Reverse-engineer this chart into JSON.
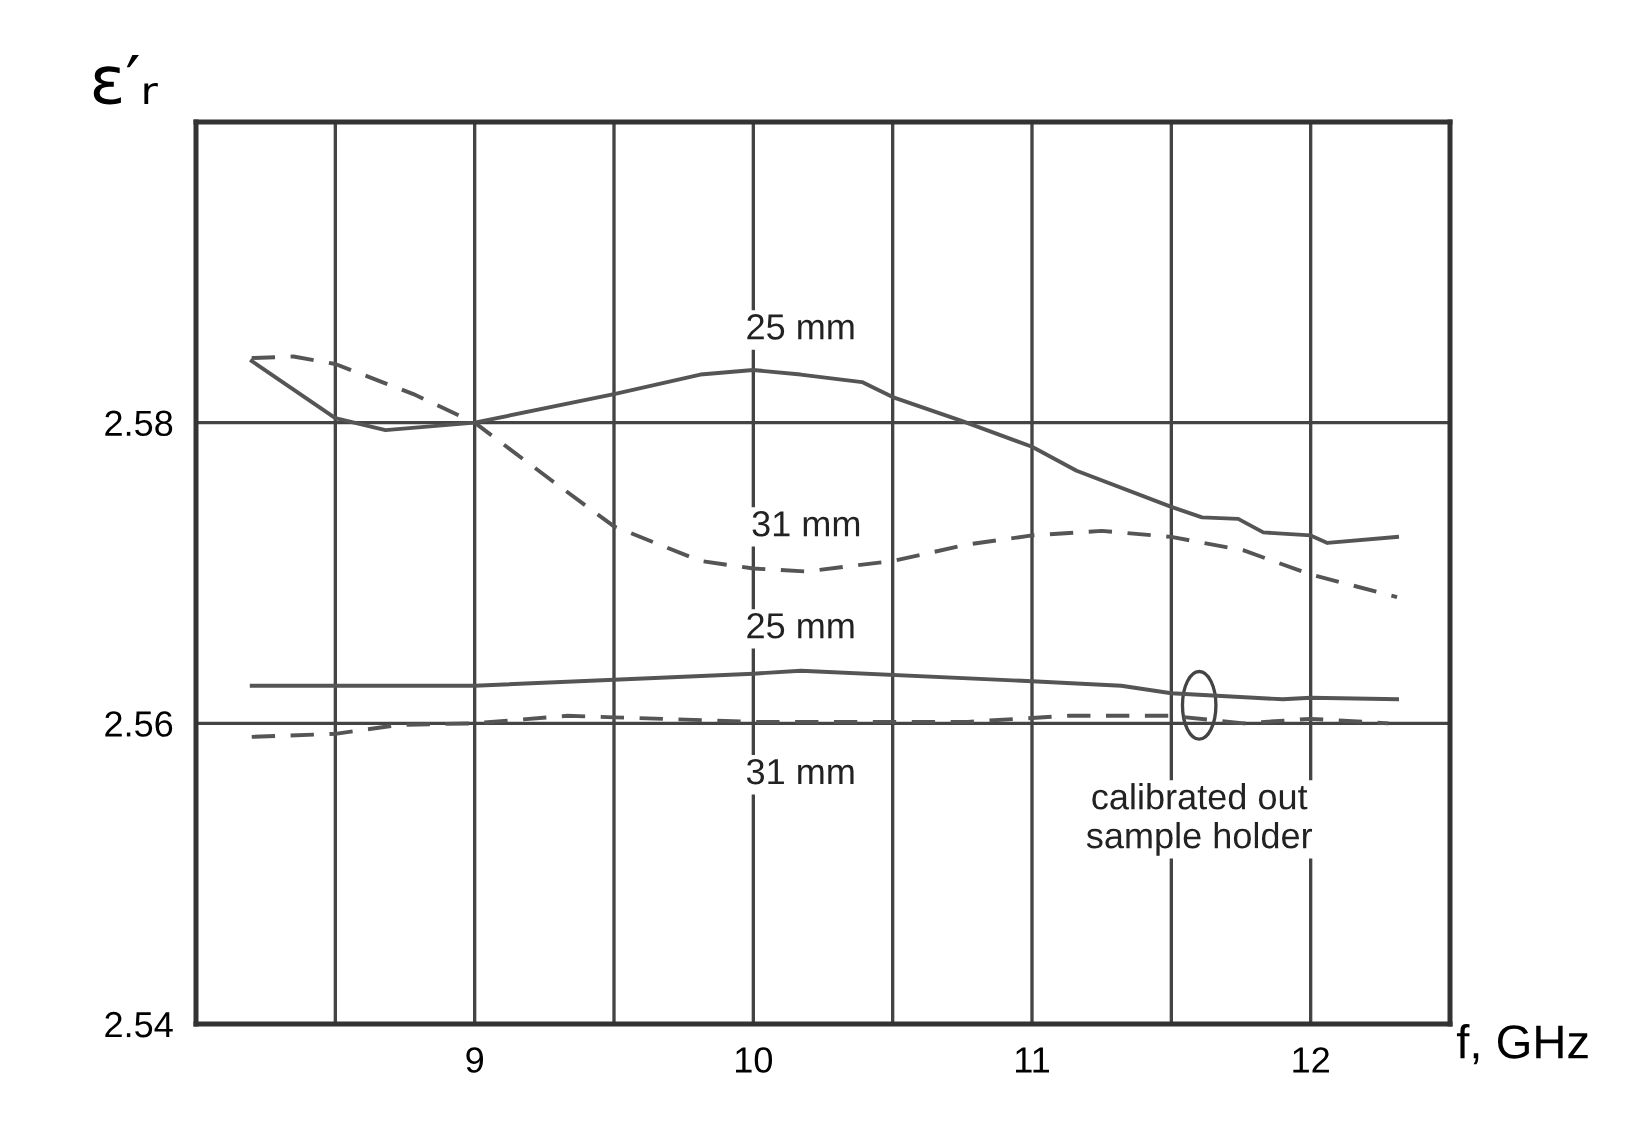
{
  "chart_data": {
    "type": "line",
    "ylabel": "ε′ᵣ",
    "xlabel": "f, GHz",
    "xlim": [
      8,
      12.5
    ],
    "ylim": [
      2.54,
      2.6
    ],
    "xticks": [
      {
        "value": 8.5,
        "label": null
      },
      9,
      {
        "value": 9.5,
        "label": null
      },
      10,
      {
        "value": 10.5,
        "label": null
      },
      11,
      {
        "value": 11.5,
        "label": null
      },
      12
    ],
    "yticks": [
      2.54,
      2.56,
      2.58
    ],
    "grid": true,
    "legend": false,
    "marker": "none",
    "annotations": [
      {
        "text": "calibrated out\nsample holder",
        "x": 11.6,
        "y": 2.5612
      }
    ],
    "series": [
      {
        "name": "25 mm",
        "color": "#555555",
        "line_style": "solid",
        "x": [
          8.2,
          8.5,
          8.68,
          9.0,
          9.5,
          9.81,
          10.0,
          10.17,
          10.39,
          10.5,
          10.75,
          11.0,
          11.16,
          11.5,
          11.61,
          11.74,
          11.83,
          12.0,
          12.06,
          12.31
        ],
        "values": [
          2.5841,
          2.5803,
          2.5795,
          2.58,
          2.5819,
          2.5832,
          2.5835,
          2.5832,
          2.5827,
          2.5817,
          2.5801,
          2.5784,
          2.5768,
          2.5744,
          2.5737,
          2.5736,
          2.5727,
          2.5725,
          2.572,
          2.5724
        ]
      },
      {
        "name": "31 mm",
        "color": "#555555",
        "line_style": "dashed",
        "x": [
          8.2,
          8.35,
          8.5,
          8.78,
          9.0,
          9.28,
          9.5,
          9.81,
          10.0,
          10.19,
          10.5,
          10.77,
          11.0,
          11.25,
          11.5,
          11.76,
          12.0,
          12.31
        ],
        "values": [
          2.5843,
          2.5844,
          2.5839,
          2.5819,
          2.58,
          2.5761,
          2.5731,
          2.5708,
          2.5703,
          2.5701,
          2.5708,
          2.5719,
          2.5725,
          2.5728,
          2.5724,
          2.5715,
          2.5699,
          2.5684
        ]
      },
      {
        "name": "25 mm",
        "color": "#555555",
        "line_style": "solid",
        "x": [
          8.2,
          9.0,
          9.5,
          10.0,
          10.17,
          11.0,
          11.32,
          11.5,
          11.9,
          12.0,
          12.31
        ],
        "values": [
          2.5625,
          2.5625,
          2.5629,
          2.5633,
          2.5635,
          2.5628,
          2.5625,
          2.562,
          2.5616,
          2.5617,
          2.5616
        ]
      },
      {
        "name": "31 mm",
        "color": "#555555",
        "line_style": "dashed",
        "x": [
          8.2,
          8.5,
          8.73,
          9.0,
          9.33,
          9.5,
          10.0,
          10.17,
          10.77,
          11.13,
          11.5,
          11.76,
          12.0,
          12.28
        ],
        "values": [
          2.5591,
          2.5593,
          2.5599,
          2.56,
          2.5605,
          2.5604,
          2.5601,
          2.5601,
          2.5601,
          2.5605,
          2.5605,
          2.56,
          2.5603,
          2.56
        ]
      }
    ]
  }
}
